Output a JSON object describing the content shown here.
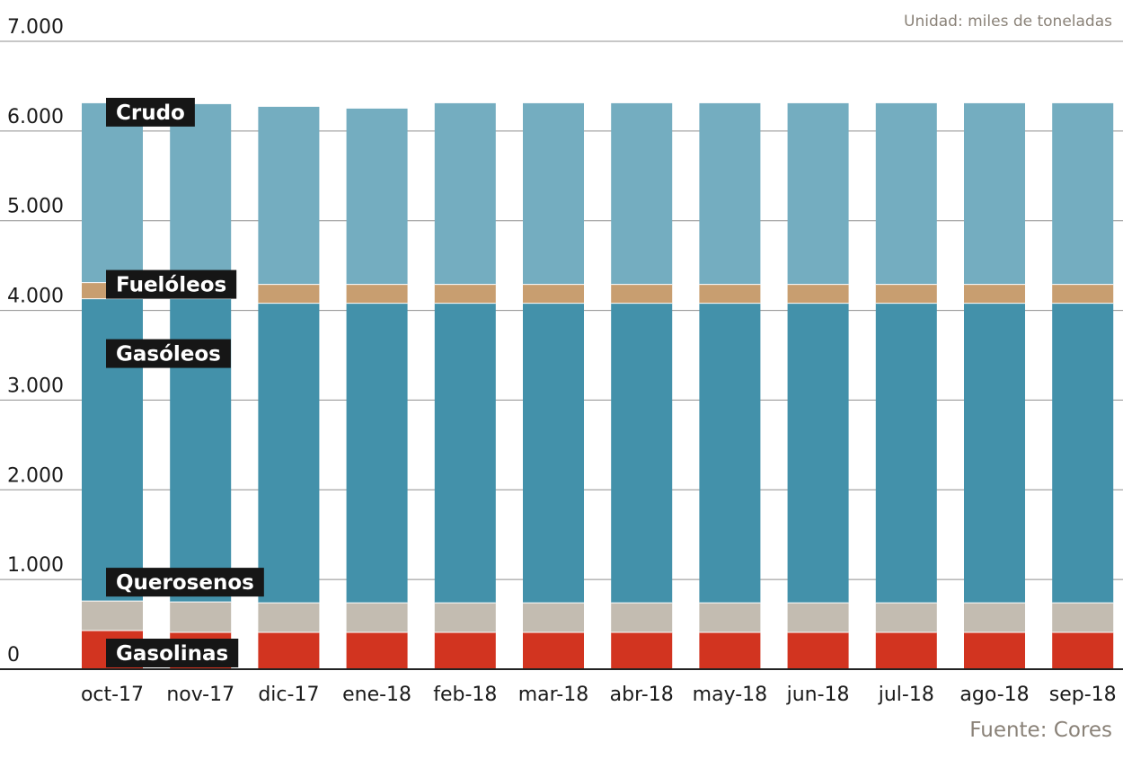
{
  "chart_data": {
    "type": "bar",
    "stacked": true,
    "unit_note": "Unidad: miles de toneladas",
    "source": "Fuente: Cores",
    "categories": [
      "oct-17",
      "nov-17",
      "dic-17",
      "ene-18",
      "feb-18",
      "mar-18",
      "abr-18",
      "may-18",
      "jun-18",
      "jul-18",
      "ago-18",
      "sep-18"
    ],
    "ylim": [
      0,
      7000
    ],
    "yticks": [
      0,
      1000,
      2000,
      3000,
      4000,
      5000,
      6000,
      7000
    ],
    "ytick_labels": [
      "0",
      "1.000",
      "2.000",
      "3.000",
      "4.000",
      "5.000",
      "6.000",
      "7.000"
    ],
    "grid": true,
    "series": [
      {
        "name": "Gasolinas",
        "color": "#d23420",
        "values": [
          430,
          410,
          410,
          410,
          410,
          410,
          410,
          410,
          410,
          410,
          410,
          410
        ]
      },
      {
        "name": "Querosenos",
        "color": "#c3bcb1",
        "values": [
          330,
          340,
          330,
          330,
          330,
          330,
          330,
          330,
          330,
          330,
          330,
          330
        ]
      },
      {
        "name": "Gasóleos",
        "color": "#4391aa",
        "values": [
          3370,
          3380,
          3340,
          3340,
          3340,
          3340,
          3340,
          3340,
          3340,
          3340,
          3340,
          3340
        ]
      },
      {
        "name": "Fuelóleos",
        "color": "#c89e70",
        "values": [
          180,
          180,
          210,
          210,
          210,
          210,
          210,
          210,
          210,
          210,
          210,
          210
        ]
      },
      {
        "name": "Crudo",
        "color": "#74adc0",
        "values": [
          2000,
          1990,
          1980,
          1960,
          2020,
          2020,
          2020,
          2020,
          2020,
          2020,
          2020,
          2020
        ]
      }
    ]
  }
}
